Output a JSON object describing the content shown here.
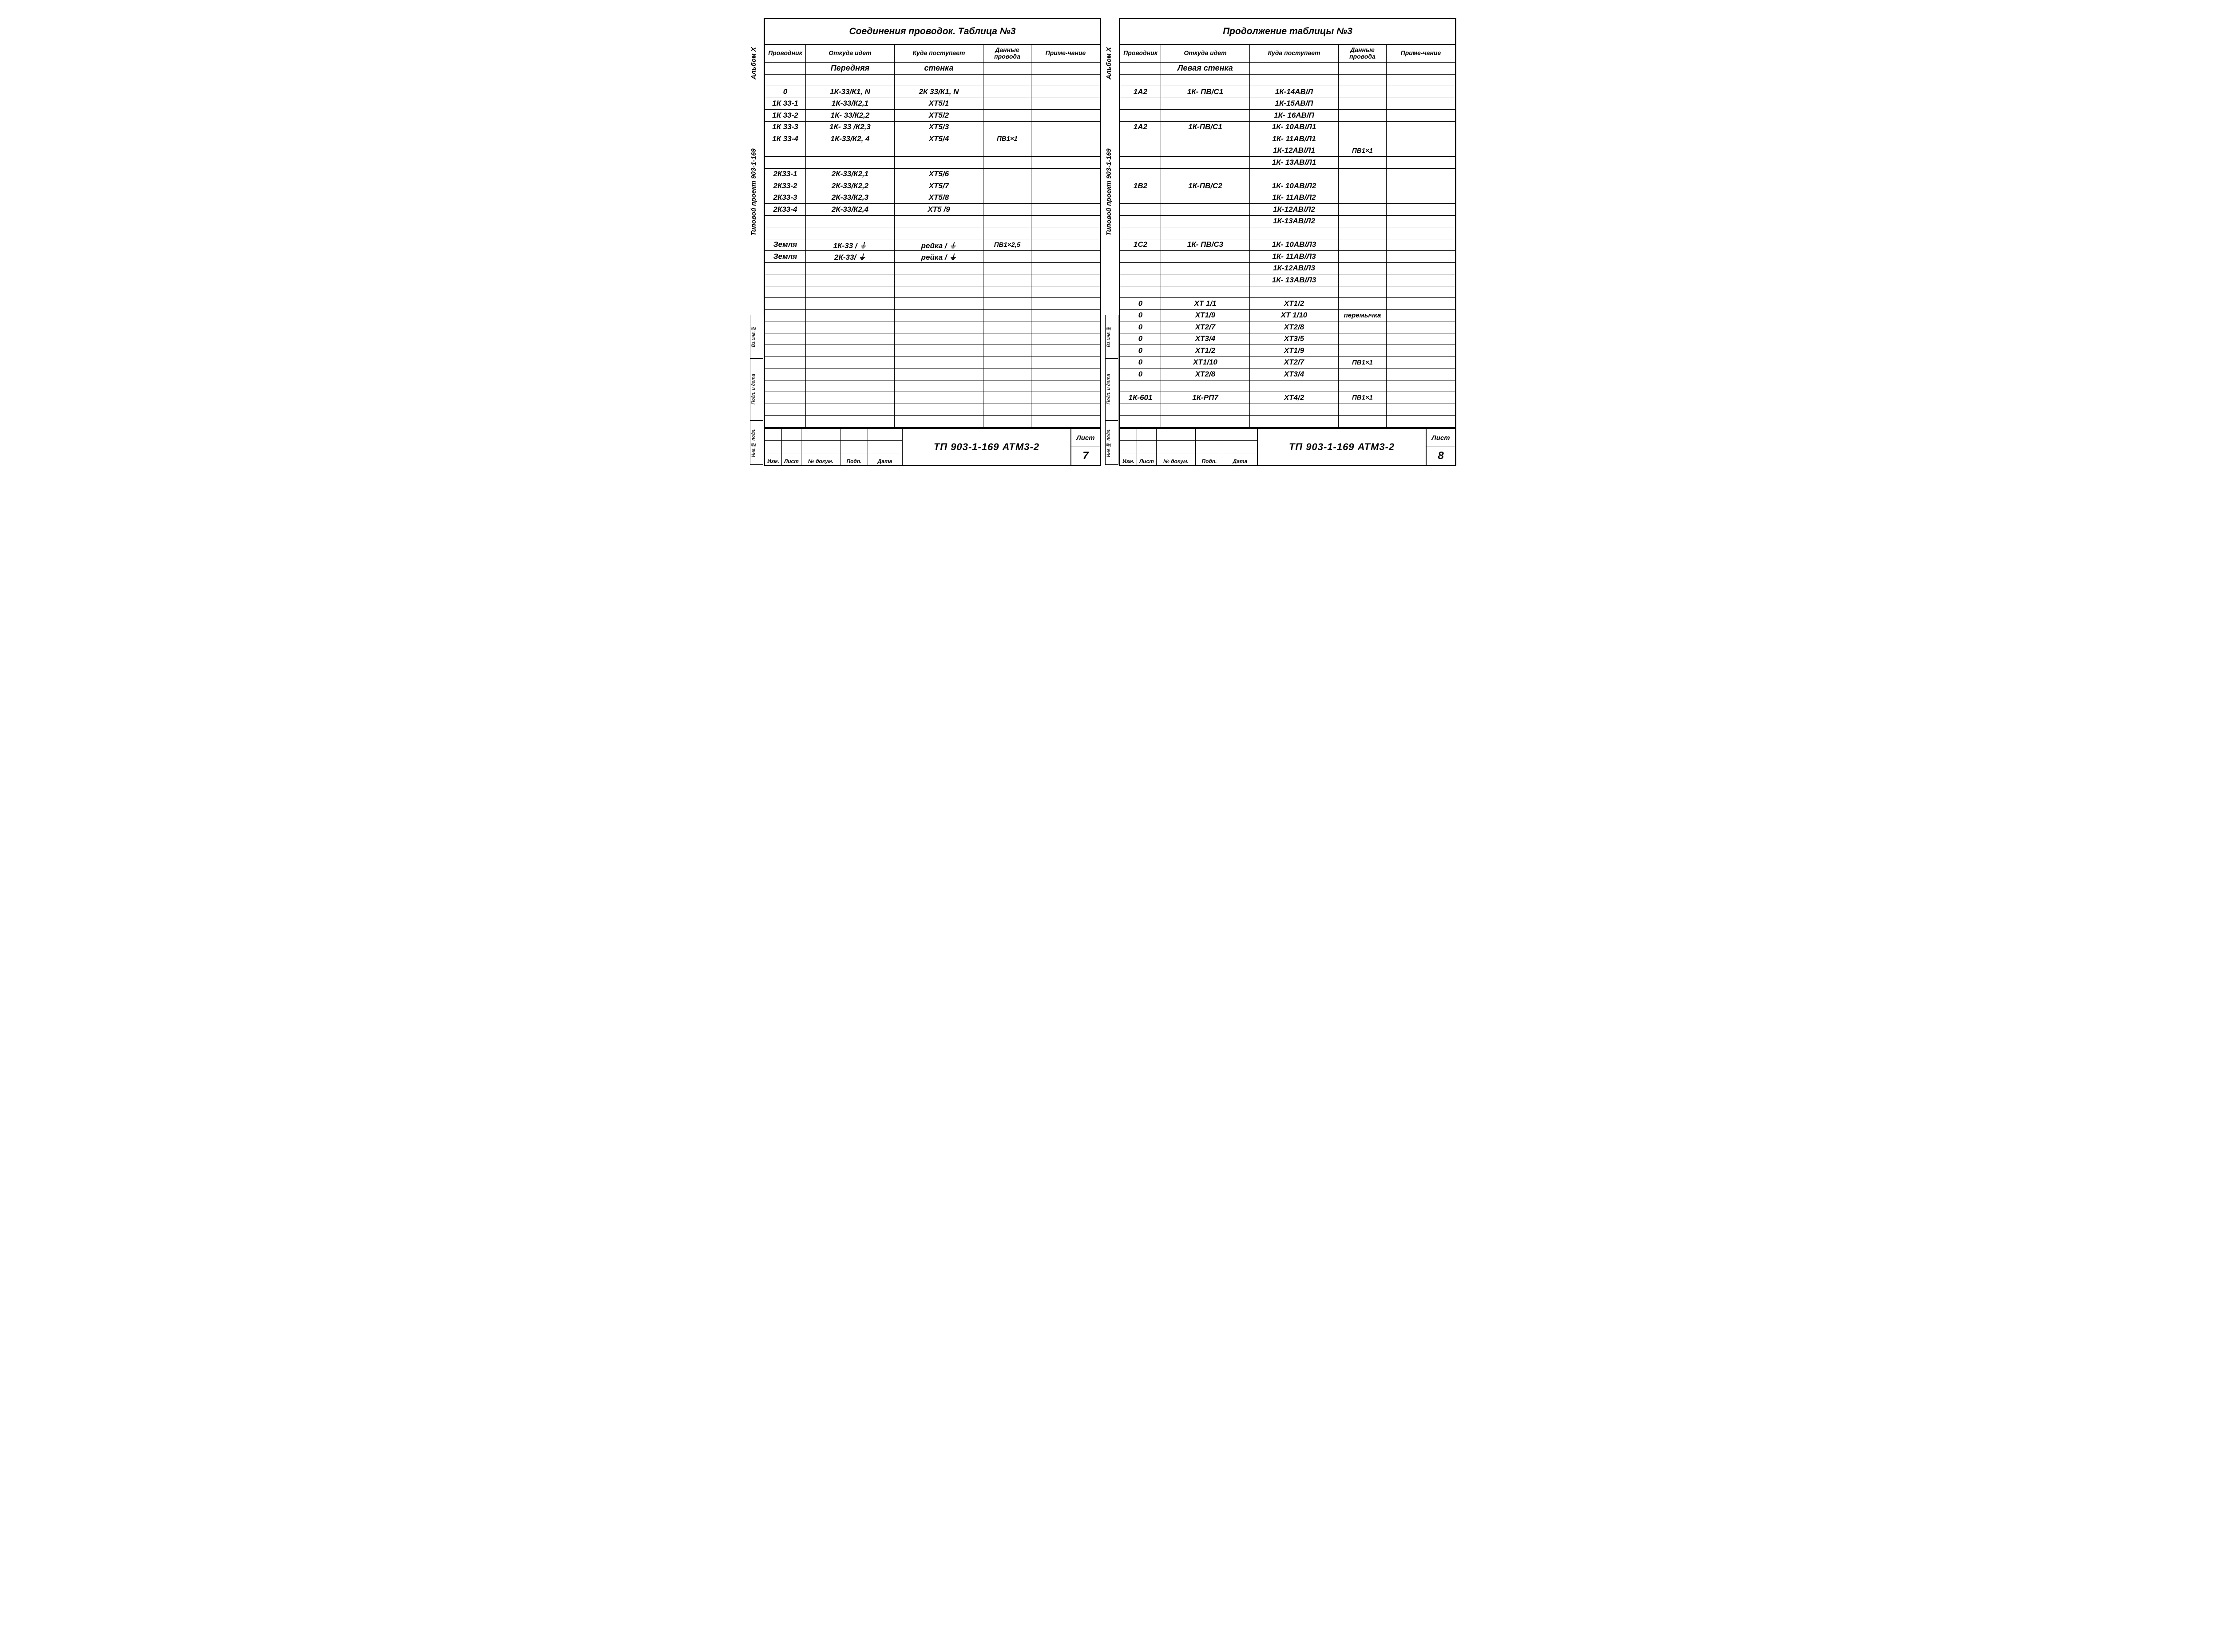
{
  "drawing_code": "ТП  903-1-169   АТМ3-2",
  "sheet_word": "Лист",
  "vert_main": "Типовой  проект  903-1-169",
  "vert_sub": "Альбом X",
  "stamp_labels": [
    "Вз.инв.№",
    "Подп. и дата",
    "Инв.№ подл."
  ],
  "footer_labels": [
    "Изм.",
    "Лист",
    "№ докум.",
    "Подп.",
    "Дата"
  ],
  "headers": [
    "Проводник",
    "Откуда  идет",
    "Куда поступает",
    "Данные провода",
    "Приме-чание"
  ],
  "sheets": [
    {
      "title": "Соединения  проводок.  Таблица  №3",
      "page": "7",
      "rows": [
        {
          "section": true,
          "c2": "Передняя",
          "c3": "стенка"
        },
        {},
        {
          "c1": "0",
          "c2": "1К-33/К1, N",
          "c3": "2К 33/К1, N"
        },
        {
          "c1": "1К 33-1",
          "c2": "1К-33/К2,1",
          "c3": "ХТ5/1"
        },
        {
          "c1": "1К 33-2",
          "c2": "1К- 33/К2,2",
          "c3": "ХТ5/2"
        },
        {
          "c1": "1К 33-3",
          "c2": "1К- 33 /К2,3",
          "c3": "ХТ5/3"
        },
        {
          "c1": "1К 33-4",
          "c2": "1К-33/К2, 4",
          "c3": "ХТ5/4",
          "c4": "ПВ1×1"
        },
        {},
        {},
        {
          "c1": "2К33-1",
          "c2": "2К-33/К2,1",
          "c3": "ХТ5/6"
        },
        {
          "c1": "2К33-2",
          "c2": "2К-33/К2,2",
          "c3": "ХТ5/7"
        },
        {
          "c1": "2К33-3",
          "c2": "2К-33/К2,3",
          "c3": "ХТ5/8"
        },
        {
          "c1": "2К33-4",
          "c2": "2К-33/К2,4",
          "c3": "ХТ5 /9"
        },
        {},
        {},
        {
          "c1": "Земля",
          "c2": "1К-33 / ⏚",
          "c3": "рейка / ⏚",
          "c4": "ПВ1×2,5"
        },
        {
          "c1": "Земля",
          "c2": "2К-33/ ⏚",
          "c3": "рейка / ⏚"
        },
        {},
        {},
        {},
        {},
        {},
        {},
        {},
        {},
        {},
        {},
        {},
        {},
        {},
        {}
      ]
    },
    {
      "title": "Продолжение  таблицы  №3",
      "page": "8",
      "rows": [
        {
          "section": true,
          "c2": "Левая  стенка"
        },
        {},
        {
          "c1": "1А2",
          "c2": "1К- ПВ/С1",
          "c3": "1К-14АВ/Л"
        },
        {
          "c3": "1К-15АВ/П"
        },
        {
          "c3": "1К- 16АВ/П"
        },
        {
          "c1": "1А2",
          "c2": "1К-ПВ/С1",
          "c3": "1К- 10АВ/Л1"
        },
        {
          "c3": "1К- 11АВ/Л1"
        },
        {
          "c3": "1К-12АВ/Л1",
          "c4": "ПВ1×1"
        },
        {
          "c3": "1К- 13АВ/Л1"
        },
        {},
        {
          "c1": "1В2",
          "c2": "1К-ПВ/С2",
          "c3": "1К- 10АВ/Л2"
        },
        {
          "c3": "1К- 11АВ/Л2"
        },
        {
          "c3": "1К-12АВ/Л2"
        },
        {
          "c3": "1К-13АВ/Л2"
        },
        {},
        {
          "c1": "1С2",
          "c2": "1К- ПВ/С3",
          "c3": "1К- 10АВ/Л3"
        },
        {
          "c3": "1К- 11АВ/Л3"
        },
        {
          "c3": "1К-12АВ/Л3"
        },
        {
          "c3": "1К- 13АВ/Л3"
        },
        {},
        {
          "c1": "0",
          "c2": "ХТ 1/1",
          "c3": "ХТ1/2"
        },
        {
          "c1": "0",
          "c2": "ХТ1/9",
          "c3": "ХТ 1/10",
          "c4": "перемычка"
        },
        {
          "c1": "0",
          "c2": "ХТ2/7",
          "c3": "ХТ2/8"
        },
        {
          "c1": "0",
          "c2": "ХТ3/4",
          "c3": "ХТ3/5"
        },
        {
          "c1": "0",
          "c2": "ХТ1/2",
          "c3": "ХТ1/9"
        },
        {
          "c1": "0",
          "c2": "ХТ1/10",
          "c3": "ХТ2/7",
          "c4": "ПВ1×1"
        },
        {
          "c1": "0",
          "c2": "ХТ2/8",
          "c3": "ХТ3/4"
        },
        {},
        {
          "c1": "1К-601",
          "c2": "1К-РП7",
          "c3": "ХТ4/2",
          "c4": "ПВ1×1"
        },
        {},
        {}
      ]
    }
  ]
}
